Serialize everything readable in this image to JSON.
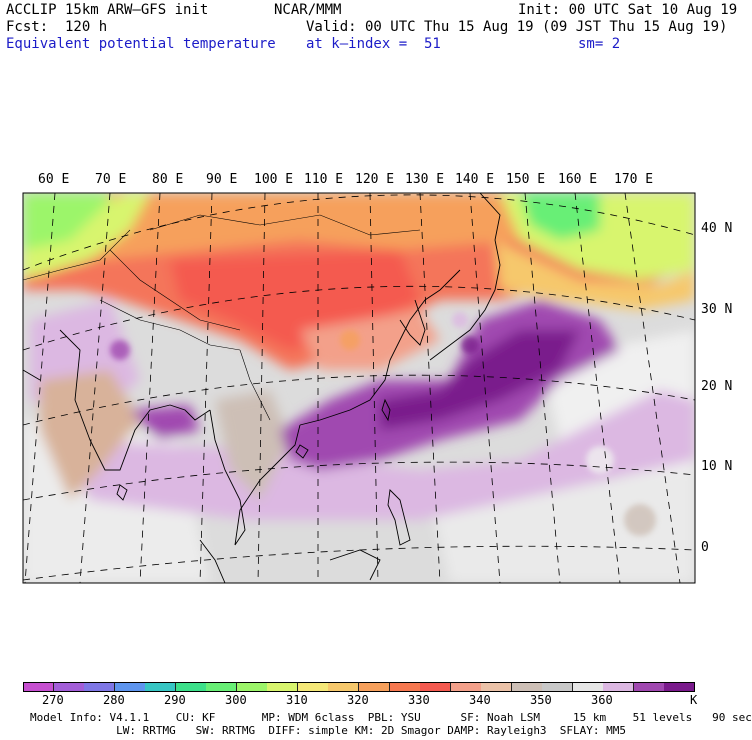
{
  "header": {
    "model_line": "ACCLIP 15km ARW–GFS init",
    "center": "NCAR/MMM",
    "init": "Init: 00 UTC Sat 10 Aug 19",
    "fcst": "Fcst:  120 h",
    "valid": "Valid: 00 UTC Thu 15 Aug 19 (09 JST Thu 15 Aug 19)",
    "field": "Equivalent potential temperature",
    "level": "at k–index =  51",
    "smooth": "sm= 2"
  },
  "map": {
    "lon_labels": [
      "60 E",
      "70 E",
      "80 E",
      "90 E",
      "100 E",
      "110 E",
      "120 E",
      "130 E",
      "140 E",
      "150 E",
      "160 E",
      "170 E"
    ],
    "lat_labels": [
      "40 N",
      "30 N",
      "20 N",
      "10 N",
      "0"
    ]
  },
  "colorbar": {
    "unit": "K",
    "labels": [
      "270",
      "280",
      "290",
      "300",
      "310",
      "320",
      "330",
      "340",
      "350",
      "360"
    ],
    "colors": [
      "#c64fd0",
      "#a35ed8",
      "#7f77e6",
      "#5e95ee",
      "#37c6c4",
      "#3ce08a",
      "#68ef76",
      "#9cf56a",
      "#d8f56e",
      "#f5e878",
      "#f6c86c",
      "#f6a05c",
      "#f67850",
      "#f45a50",
      "#f3a08a",
      "#ebc2a8",
      "#cdbfb6",
      "#c8c8c8",
      "#e6e6e6",
      "#dcb8e2",
      "#a048b0",
      "#7a1a8c"
    ]
  },
  "footer": {
    "line1": "Model Info: V4.1.1    CU: KF       MP: WDM 6class  PBL: YSU      SF: Noah LSM     15 km    51 levels   90 sec",
    "line2": "             LW: RRTMG   SW: RRTMG  DIFF: simple KM: 2D Smagor DAMP: Rayleigh3  SFLAY: MM5"
  }
}
